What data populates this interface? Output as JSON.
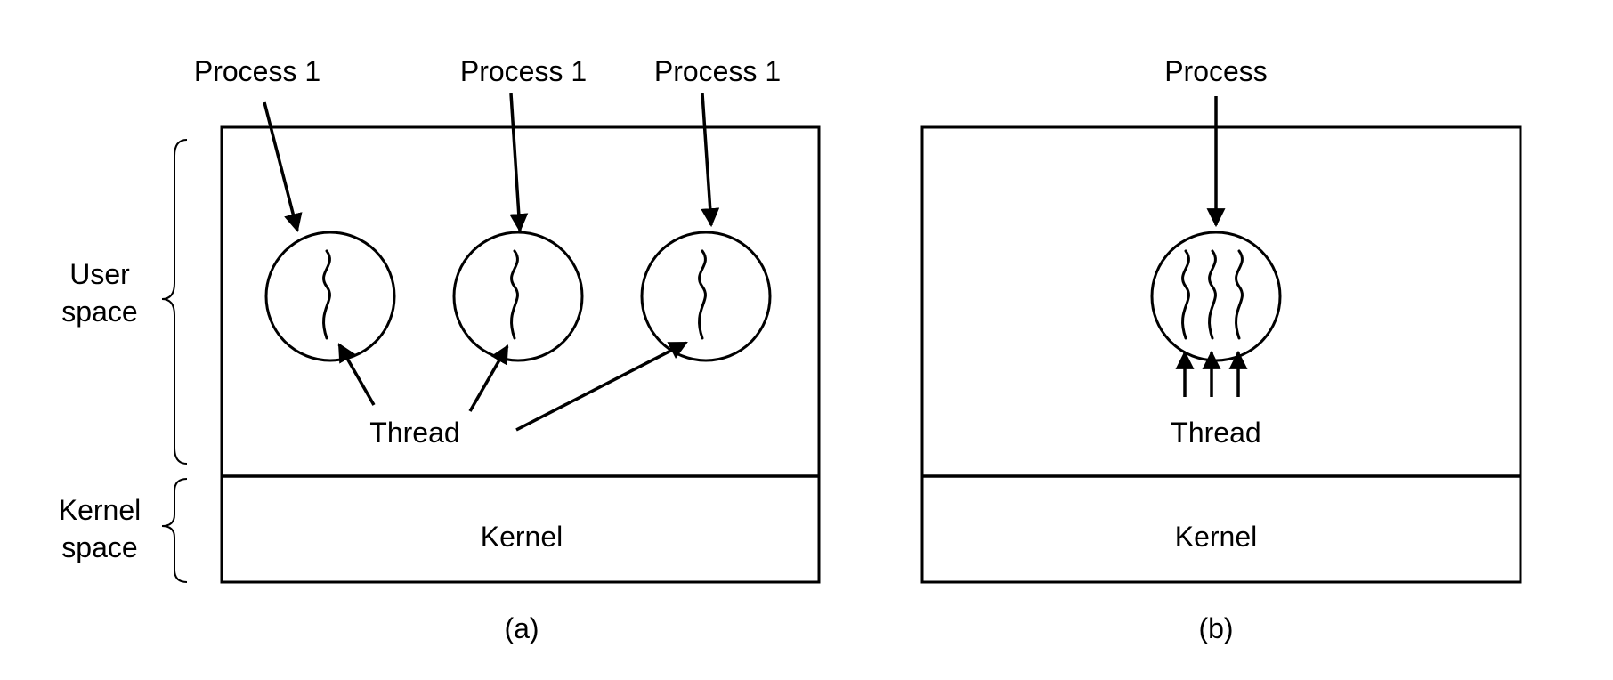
{
  "left_labels": {
    "user_space_line1": "User",
    "user_space_line2": "space",
    "kernel_space_line1": "Kernel",
    "kernel_space_line2": "space"
  },
  "panel_a": {
    "process_labels": [
      "Process 1",
      "Process 1",
      "Process 1"
    ],
    "thread_label": "Thread",
    "kernel_label": "Kernel",
    "caption": "(a)"
  },
  "panel_b": {
    "process_label": "Process",
    "thread_label": "Thread",
    "kernel_label": "Kernel",
    "caption": "(b)"
  }
}
